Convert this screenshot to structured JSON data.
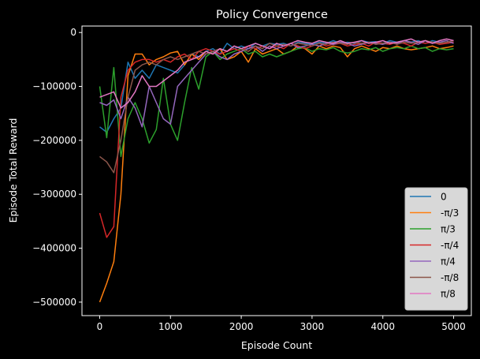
{
  "chart_data": {
    "type": "line",
    "title": "Policy Convergence",
    "xlabel": "Episode Count",
    "ylabel": "Episode Total Reward",
    "xlim": [
      -250,
      5250
    ],
    "ylim": [
      -525000,
      12000
    ],
    "xticks": [
      0,
      1000,
      2000,
      3000,
      4000,
      5000
    ],
    "yticks": [
      0,
      -100000,
      -200000,
      -300000,
      -400000,
      -500000
    ],
    "xtick_labels": [
      "0",
      "1000",
      "2000",
      "3000",
      "4000",
      "5000"
    ],
    "ytick_labels": [
      "0",
      "−100000",
      "−200000",
      "−300000",
      "−400000",
      "−500000"
    ],
    "grid": false,
    "legend_position": "lower right",
    "background": "#000000",
    "x": [
      0,
      100,
      200,
      300,
      400,
      500,
      600,
      700,
      800,
      900,
      1000,
      1100,
      1200,
      1300,
      1400,
      1500,
      1600,
      1700,
      1800,
      1900,
      2000,
      2100,
      2200,
      2300,
      2400,
      2500,
      2600,
      2700,
      2800,
      2900,
      3000,
      3100,
      3200,
      3300,
      3400,
      3500,
      3600,
      3700,
      3800,
      3900,
      4000,
      4100,
      4200,
      4300,
      4400,
      4500,
      4600,
      4700,
      4800,
      4900,
      5000
    ],
    "series": [
      {
        "name": "0",
        "color": "#1f77b4",
        "values": [
          -175000,
          -185000,
          -160000,
          -140000,
          -55000,
          -85000,
          -70000,
          -85000,
          -60000,
          -65000,
          -70000,
          -75000,
          -60000,
          -40000,
          -45000,
          -35000,
          -30000,
          -40000,
          -20000,
          -30000,
          -25000,
          -30000,
          -20000,
          -25000,
          -20000,
          -22000,
          -20000,
          -25000,
          -18000,
          -20000,
          -22000,
          -18000,
          -20000,
          -15000,
          -20000,
          -18000,
          -20000,
          -15000,
          -18000,
          -17000,
          -20000,
          -15000,
          -18000,
          -15000,
          -18000,
          -15000,
          -20000,
          -15000,
          -18000,
          -20000,
          -18000
        ]
      },
      {
        "name": "-π/3",
        "color": "#ff7f0e",
        "values": [
          -500000,
          -465000,
          -425000,
          -300000,
          -80000,
          -40000,
          -40000,
          -60000,
          -50000,
          -45000,
          -38000,
          -35000,
          -60000,
          -40000,
          -50000,
          -35000,
          -40000,
          -30000,
          -50000,
          -45000,
          -35000,
          -55000,
          -30000,
          -40000,
          -35000,
          -30000,
          -40000,
          -35000,
          -25000,
          -30000,
          -40000,
          -25000,
          -30000,
          -25000,
          -28000,
          -45000,
          -30000,
          -25000,
          -30000,
          -35000,
          -28000,
          -30000,
          -25000,
          -30000,
          -32000,
          -30000,
          -28000,
          -25000,
          -30000,
          -28000,
          -25000
        ]
      },
      {
        "name": "π/3",
        "color": "#2ca02c",
        "values": [
          -100000,
          -195000,
          -65000,
          -230000,
          -160000,
          -130000,
          -160000,
          -205000,
          -180000,
          -85000,
          -170000,
          -200000,
          -130000,
          -65000,
          -105000,
          -45000,
          -35000,
          -50000,
          -40000,
          -35000,
          -30000,
          -40000,
          -35000,
          -45000,
          -40000,
          -45000,
          -40000,
          -35000,
          -30000,
          -28000,
          -35000,
          -30000,
          -32000,
          -28000,
          -35000,
          -38000,
          -35000,
          -30000,
          -32000,
          -28000,
          -35000,
          -30000,
          -28000,
          -30000,
          -25000,
          -30000,
          -28000,
          -35000,
          -30000,
          -32000,
          -30000
        ]
      },
      {
        "name": "-π/4",
        "color": "#d62728",
        "values": [
          -335000,
          -380000,
          -360000,
          -120000,
          -70000,
          -55000,
          -50000,
          -50000,
          -55000,
          -50000,
          -55000,
          -45000,
          -40000,
          -50000,
          -35000,
          -30000,
          -35000,
          -40000,
          -35000,
          -30000,
          -35000,
          -25000,
          -30000,
          -25000,
          -30000,
          -25000,
          -30000,
          -20000,
          -25000,
          -30000,
          -25000,
          -20000,
          -25000,
          -22000,
          -20000,
          -25000,
          -22000,
          -20000,
          -25000,
          -18000,
          -20000,
          -22000,
          -18000,
          -20000,
          -25000,
          -18000,
          -20000,
          -18000,
          -22000,
          -20000,
          -18000
        ]
      },
      {
        "name": "π/4",
        "color": "#9467bd",
        "values": [
          -130000,
          -135000,
          -125000,
          -160000,
          -120000,
          -140000,
          -175000,
          -100000,
          -130000,
          -160000,
          -170000,
          -100000,
          -85000,
          -70000,
          -55000,
          -40000,
          -35000,
          -45000,
          -50000,
          -40000,
          -35000,
          -30000,
          -25000,
          -35000,
          -25000,
          -30000,
          -25000,
          -20000,
          -28000,
          -25000,
          -22000,
          -25000,
          -20000,
          -22000,
          -18000,
          -20000,
          -25000,
          -22000,
          -18000,
          -20000,
          -22000,
          -18000,
          -20000,
          -15000,
          -18000,
          -22000,
          -15000,
          -20000,
          -18000,
          -15000,
          -20000
        ]
      },
      {
        "name": "-π/8",
        "color": "#8c564b",
        "values": [
          -230000,
          -240000,
          -260000,
          -200000,
          -120000,
          -70000,
          -60000,
          -55000,
          -60000,
          -50000,
          -45000,
          -50000,
          -45000,
          -40000,
          -35000,
          -40000,
          -35000,
          -30000,
          -35000,
          -25000,
          -30000,
          -35000,
          -25000,
          -30000,
          -20000,
          -25000,
          -22000,
          -25000,
          -20000,
          -22000,
          -25000,
          -20000,
          -22000,
          -18000,
          -20000,
          -22000,
          -18000,
          -20000,
          -18000,
          -22000,
          -20000,
          -18000,
          -22000,
          -18000,
          -20000,
          -18000,
          -15000,
          -18000,
          -20000,
          -18000,
          -15000
        ]
      },
      {
        "name": "π/8",
        "color": "#e377c2",
        "values": [
          -120000,
          -115000,
          -110000,
          -140000,
          -130000,
          -110000,
          -80000,
          -100000,
          -100000,
          -90000,
          -80000,
          -70000,
          -55000,
          -50000,
          -45000,
          -35000,
          -40000,
          -30000,
          -35000,
          -25000,
          -30000,
          -25000,
          -20000,
          -25000,
          -30000,
          -20000,
          -25000,
          -20000,
          -15000,
          -18000,
          -20000,
          -15000,
          -18000,
          -20000,
          -15000,
          -20000,
          -18000,
          -15000,
          -20000,
          -18000,
          -15000,
          -20000,
          -18000,
          -15000,
          -12000,
          -18000,
          -15000,
          -20000,
          -15000,
          -12000,
          -15000
        ]
      }
    ]
  }
}
